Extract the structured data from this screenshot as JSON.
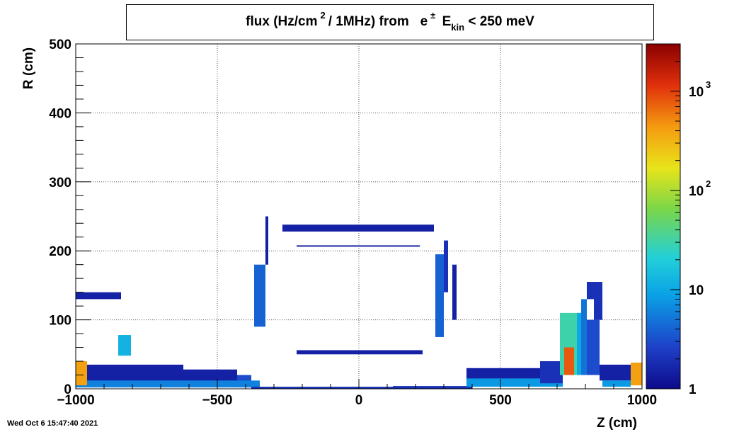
{
  "chart_data": {
    "type": "heatmap",
    "title_parts": {
      "a": "flux (Hz/cm",
      "a_sup": "2",
      "b": "/ 1MHz) from",
      "c": "e",
      "c_sup": "±",
      "d": "E",
      "d_sub": "kin",
      "e": "< 250 meV"
    },
    "xlabel": "Z (cm)",
    "ylabel": "R (cm)",
    "xlim": [
      -1000,
      1000
    ],
    "ylim": [
      0,
      500
    ],
    "x_ticks": [
      -1000,
      -500,
      0,
      500,
      1000
    ],
    "x_tick_labels": [
      "−1000",
      "−500",
      "0",
      "500",
      "1000"
    ],
    "y_ticks": [
      0,
      100,
      200,
      300,
      400,
      500
    ],
    "y_tick_labels": [
      "0",
      "100",
      "200",
      "300",
      "400",
      "500"
    ],
    "colorbar": {
      "scale": "log",
      "range": [
        1,
        3000
      ],
      "tick_labels": [
        {
          "value": 1,
          "base": "1",
          "exp": ""
        },
        {
          "value": 10,
          "base": "10",
          "exp": ""
        },
        {
          "value": 100,
          "base": "10",
          "exp": "2"
        },
        {
          "value": 1000,
          "base": "10",
          "exp": "3"
        }
      ]
    },
    "grid": true,
    "regions": [
      {
        "z": [
          -1000,
          -840
        ],
        "r": [
          130,
          140
        ],
        "level": 1.5
      },
      {
        "z": [
          -850,
          -805
        ],
        "r": [
          48,
          78
        ],
        "level": 12
      },
      {
        "z": [
          -1000,
          -620
        ],
        "r": [
          10,
          35
        ],
        "level": 1.5
      },
      {
        "z": [
          -620,
          -430
        ],
        "r": [
          8,
          28
        ],
        "level": 1.5
      },
      {
        "z": [
          -430,
          -380
        ],
        "r": [
          2,
          20
        ],
        "level": 3
      },
      {
        "z": [
          -1000,
          -350
        ],
        "r": [
          2,
          12
        ],
        "level": 6
      },
      {
        "z": [
          -1000,
          -960
        ],
        "r": [
          5,
          40
        ],
        "level": 400
      },
      {
        "z": [
          -380,
          130
        ],
        "r": [
          0,
          3
        ],
        "level": 2
      },
      {
        "z": [
          -370,
          -330
        ],
        "r": [
          90,
          180
        ],
        "level": 4
      },
      {
        "z": [
          -330,
          -320
        ],
        "r": [
          180,
          250
        ],
        "level": 1.5
      },
      {
        "z": [
          -270,
          265
        ],
        "r": [
          228,
          238
        ],
        "level": 1.5
      },
      {
        "z": [
          -220,
          215
        ],
        "r": [
          206,
          208
        ],
        "level": 1.5
      },
      {
        "z": [
          -220,
          225
        ],
        "r": [
          50,
          56
        ],
        "level": 1.5
      },
      {
        "z": [
          270,
          300
        ],
        "r": [
          75,
          195
        ],
        "level": 4
      },
      {
        "z": [
          300,
          315
        ],
        "r": [
          140,
          215
        ],
        "level": 2
      },
      {
        "z": [
          330,
          345
        ],
        "r": [
          100,
          180
        ],
        "level": 1.5
      },
      {
        "z": [
          120,
          400
        ],
        "r": [
          0,
          4
        ],
        "level": 2
      },
      {
        "z": [
          380,
          640
        ],
        "r": [
          10,
          30
        ],
        "level": 1.5
      },
      {
        "z": [
          380,
          720
        ],
        "r": [
          3,
          15
        ],
        "level": 8
      },
      {
        "z": [
          640,
          720
        ],
        "r": [
          8,
          40
        ],
        "level": 2
      },
      {
        "z": [
          710,
          770
        ],
        "r": [
          20,
          110
        ],
        "level": 30
      },
      {
        "z": [
          725,
          760
        ],
        "r": [
          20,
          60
        ],
        "level": 800
      },
      {
        "z": [
          770,
          785
        ],
        "r": [
          20,
          110
        ],
        "level": 10
      },
      {
        "z": [
          785,
          805
        ],
        "r": [
          20,
          130
        ],
        "level": 5
      },
      {
        "z": [
          805,
          850
        ],
        "r": [
          20,
          100
        ],
        "level": 3
      },
      {
        "z": [
          805,
          830
        ],
        "r": [
          130,
          155
        ],
        "level": 2
      },
      {
        "z": [
          830,
          860
        ],
        "r": [
          100,
          155
        ],
        "level": 2
      },
      {
        "z": [
          850,
          960
        ],
        "r": [
          12,
          35
        ],
        "level": 1.5
      },
      {
        "z": [
          860,
          960
        ],
        "r": [
          3,
          12
        ],
        "level": 8
      },
      {
        "z": [
          960,
          1000
        ],
        "r": [
          5,
          38
        ],
        "level": 400
      }
    ]
  },
  "timestamp": "Wed Oct  6 15:47:40 2021"
}
